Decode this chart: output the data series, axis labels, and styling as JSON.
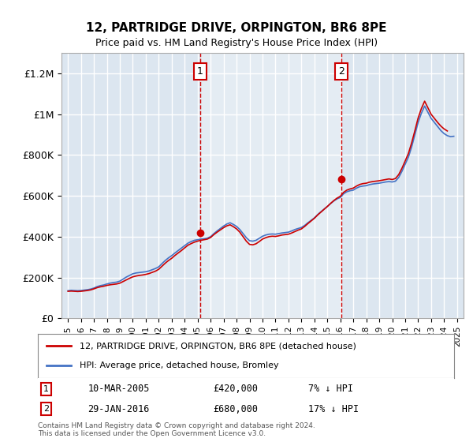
{
  "title": "12, PARTRIDGE DRIVE, ORPINGTON, BR6 8PE",
  "subtitle": "Price paid vs. HM Land Registry's House Price Index (HPI)",
  "footer": "Contains HM Land Registry data © Crown copyright and database right 2024.\nThis data is licensed under the Open Government Licence v3.0.",
  "legend_line1": "12, PARTRIDGE DRIVE, ORPINGTON, BR6 8PE (detached house)",
  "legend_line2": "HPI: Average price, detached house, Bromley",
  "annotation1": {
    "label": "1",
    "date": "10-MAR-2005",
    "price": "£420,000",
    "note": "7% ↓ HPI"
  },
  "annotation2": {
    "label": "2",
    "date": "29-JAN-2016",
    "price": "£680,000",
    "note": "17% ↓ HPI"
  },
  "ylim": [
    0,
    1300000
  ],
  "xlim_start": 1994.5,
  "xlim_end": 2025.5,
  "yticks": [
    0,
    200000,
    400000,
    600000,
    800000,
    1000000,
    1200000
  ],
  "ytick_labels": [
    "£0",
    "£200K",
    "£400K",
    "£600K",
    "£800K",
    "£1M",
    "£1.2M"
  ],
  "xticks": [
    1995,
    1996,
    1997,
    1998,
    1999,
    2000,
    2001,
    2002,
    2003,
    2004,
    2005,
    2006,
    2007,
    2008,
    2009,
    2010,
    2011,
    2012,
    2013,
    2014,
    2015,
    2016,
    2017,
    2018,
    2019,
    2020,
    2021,
    2022,
    2023,
    2024,
    2025
  ],
  "background_color": "#ffffff",
  "plot_bg_color": "#dce6f0",
  "grid_color": "#ffffff",
  "vline1_x": 2005.19,
  "vline2_x": 2016.08,
  "hpi_color": "#4472c4",
  "price_color": "#cc0000",
  "marker1_x": 2005.19,
  "marker1_y": 420000,
  "marker2_x": 2016.08,
  "marker2_y": 680000,
  "hpi_data": {
    "years": [
      1995.0,
      1995.25,
      1995.5,
      1995.75,
      1996.0,
      1996.25,
      1996.5,
      1996.75,
      1997.0,
      1997.25,
      1997.5,
      1997.75,
      1998.0,
      1998.25,
      1998.5,
      1998.75,
      1999.0,
      1999.25,
      1999.5,
      1999.75,
      2000.0,
      2000.25,
      2000.5,
      2000.75,
      2001.0,
      2001.25,
      2001.5,
      2001.75,
      2002.0,
      2002.25,
      2002.5,
      2002.75,
      2003.0,
      2003.25,
      2003.5,
      2003.75,
      2004.0,
      2004.25,
      2004.5,
      2004.75,
      2005.0,
      2005.25,
      2005.5,
      2005.75,
      2006.0,
      2006.25,
      2006.5,
      2006.75,
      2007.0,
      2007.25,
      2007.5,
      2007.75,
      2008.0,
      2008.25,
      2008.5,
      2008.75,
      2009.0,
      2009.25,
      2009.5,
      2009.75,
      2010.0,
      2010.25,
      2010.5,
      2010.75,
      2011.0,
      2011.25,
      2011.5,
      2011.75,
      2012.0,
      2012.25,
      2012.5,
      2012.75,
      2013.0,
      2013.25,
      2013.5,
      2013.75,
      2014.0,
      2014.25,
      2014.5,
      2014.75,
      2015.0,
      2015.25,
      2015.5,
      2015.75,
      2016.0,
      2016.25,
      2016.5,
      2016.75,
      2017.0,
      2017.25,
      2017.5,
      2017.75,
      2018.0,
      2018.25,
      2018.5,
      2018.75,
      2019.0,
      2019.25,
      2019.5,
      2019.75,
      2020.0,
      2020.25,
      2020.5,
      2020.75,
      2021.0,
      2021.25,
      2021.5,
      2021.75,
      2022.0,
      2022.25,
      2022.5,
      2022.75,
      2023.0,
      2023.25,
      2023.5,
      2023.75,
      2024.0,
      2024.25,
      2024.5,
      2024.75
    ],
    "values": [
      135000,
      137000,
      136000,
      135000,
      136000,
      138000,
      140000,
      143000,
      148000,
      155000,
      160000,
      163000,
      168000,
      172000,
      175000,
      177000,
      182000,
      192000,
      202000,
      210000,
      218000,
      222000,
      224000,
      226000,
      228000,
      232000,
      238000,
      244000,
      252000,
      268000,
      283000,
      296000,
      307000,
      320000,
      332000,
      344000,
      356000,
      368000,
      376000,
      382000,
      385000,
      388000,
      390000,
      393000,
      400000,
      415000,
      428000,
      440000,
      452000,
      462000,
      468000,
      460000,
      450000,
      435000,
      415000,
      395000,
      380000,
      378000,
      382000,
      392000,
      402000,
      408000,
      412000,
      413000,
      412000,
      415000,
      418000,
      420000,
      422000,
      428000,
      435000,
      440000,
      445000,
      455000,
      468000,
      480000,
      492000,
      508000,
      522000,
      535000,
      548000,
      562000,
      575000,
      585000,
      592000,
      610000,
      620000,
      625000,
      628000,
      638000,
      645000,
      648000,
      650000,
      655000,
      658000,
      660000,
      662000,
      665000,
      668000,
      670000,
      668000,
      672000,
      690000,
      720000,
      755000,
      790000,
      840000,
      900000,
      960000,
      1005000,
      1040000,
      1010000,
      980000,
      960000,
      940000,
      920000,
      905000,
      895000,
      890000,
      892000
    ]
  },
  "price_data": {
    "years": [
      1995.0,
      1995.25,
      1995.5,
      1995.75,
      1996.0,
      1996.25,
      1996.5,
      1996.75,
      1997.0,
      1997.25,
      1997.5,
      1997.75,
      1998.0,
      1998.25,
      1998.5,
      1998.75,
      1999.0,
      1999.25,
      1999.5,
      1999.75,
      2000.0,
      2000.25,
      2000.5,
      2000.75,
      2001.0,
      2001.25,
      2001.5,
      2001.75,
      2002.0,
      2002.25,
      2002.5,
      2002.75,
      2003.0,
      2003.25,
      2003.5,
      2003.75,
      2004.0,
      2004.25,
      2004.5,
      2004.75,
      2005.0,
      2005.25,
      2005.5,
      2005.75,
      2006.0,
      2006.25,
      2006.5,
      2006.75,
      2007.0,
      2007.25,
      2007.5,
      2007.75,
      2008.0,
      2008.25,
      2008.5,
      2008.75,
      2009.0,
      2009.25,
      2009.5,
      2009.75,
      2010.0,
      2010.25,
      2010.5,
      2010.75,
      2011.0,
      2011.25,
      2011.5,
      2011.75,
      2012.0,
      2012.25,
      2012.5,
      2012.75,
      2013.0,
      2013.25,
      2013.5,
      2013.75,
      2014.0,
      2014.25,
      2014.5,
      2014.75,
      2015.0,
      2015.25,
      2015.5,
      2015.75,
      2016.0,
      2016.25,
      2016.5,
      2016.75,
      2017.0,
      2017.25,
      2017.5,
      2017.75,
      2018.0,
      2018.25,
      2018.5,
      2018.75,
      2019.0,
      2019.25,
      2019.5,
      2019.75,
      2020.0,
      2020.25,
      2020.5,
      2020.75,
      2021.0,
      2021.25,
      2021.5,
      2021.75,
      2022.0,
      2022.25,
      2022.5,
      2022.75,
      2023.0,
      2023.25,
      2023.5,
      2023.75,
      2024.0,
      2024.25
    ],
    "values": [
      132000,
      133000,
      132000,
      131000,
      132000,
      134000,
      136000,
      139000,
      144000,
      150000,
      154000,
      157000,
      161000,
      164000,
      166000,
      168000,
      172000,
      180000,
      188000,
      196000,
      203000,
      207000,
      210000,
      212000,
      215000,
      219000,
      225000,
      231000,
      240000,
      255000,
      270000,
      283000,
      294000,
      308000,
      320000,
      332000,
      345000,
      358000,
      366000,
      373000,
      378000,
      382000,
      385000,
      388000,
      396000,
      410000,
      422000,
      433000,
      444000,
      453000,
      458000,
      449000,
      438000,
      422000,
      400000,
      378000,
      362000,
      360000,
      365000,
      376000,
      388000,
      395000,
      400000,
      402000,
      401000,
      404000,
      408000,
      410000,
      412000,
      418000,
      425000,
      432000,
      438000,
      450000,
      464000,
      477000,
      490000,
      506000,
      520000,
      534000,
      548000,
      563000,
      577000,
      589000,
      598000,
      617000,
      628000,
      634000,
      638000,
      648000,
      656000,
      660000,
      662000,
      667000,
      670000,
      672000,
      674000,
      677000,
      680000,
      683000,
      680000,
      685000,
      704000,
      735000,
      771000,
      808000,
      860000,
      920000,
      982000,
      1028000,
      1064000,
      1032000,
      1000000,
      980000,
      960000,
      942000,
      928000,
      918000
    ]
  }
}
